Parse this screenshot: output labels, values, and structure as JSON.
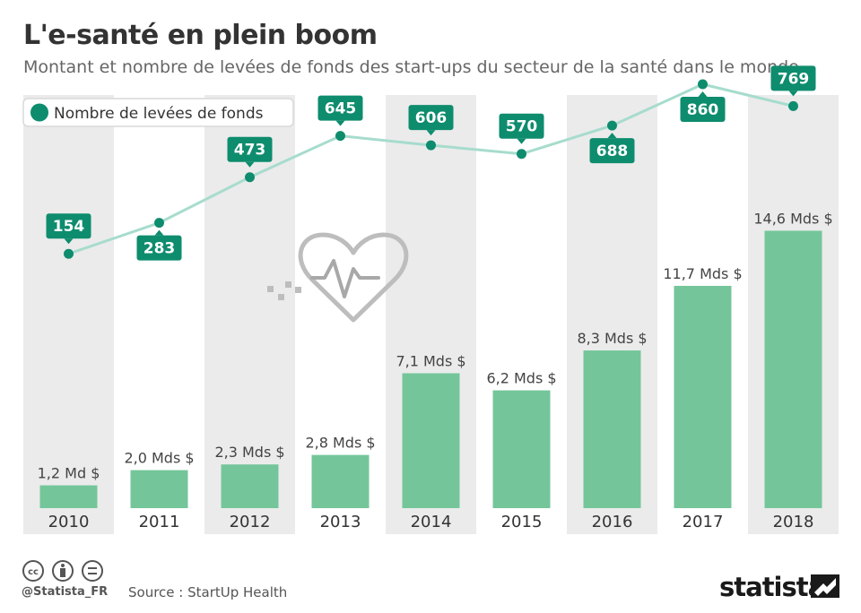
{
  "header": {
    "title": "L'e-santé en plein boom",
    "subtitle": "Montant et nombre de levées de fonds des start-ups du secteur de la santé dans le monde"
  },
  "legend": {
    "label": "Nombre de levées de fonds"
  },
  "footer": {
    "handle": "@Statista_FR",
    "source": "Source : StartUp Health",
    "brand": "statista"
  },
  "colors": {
    "bar": "#74c69a",
    "point": "#0e8c6e",
    "line": "#a7dccd",
    "shade": "#ebebeb"
  },
  "icons": [
    "creative-commons-icon",
    "attribution-icon",
    "no-derivatives-icon",
    "heartbeat-icon"
  ],
  "chart_data": {
    "type": "bar",
    "title": "L'e-santé en plein boom",
    "subtitle": "Montant et nombre de levées de fonds des start-ups du secteur de la santé dans le monde",
    "categories": [
      "2010",
      "2011",
      "2012",
      "2013",
      "2014",
      "2015",
      "2016",
      "2017",
      "2018"
    ],
    "series": [
      {
        "type": "bar",
        "values": [
          1.2,
          2.0,
          2.3,
          2.8,
          7.1,
          6.2,
          8.3,
          11.7,
          14.6
        ],
        "labels": [
          "1,2 Md $",
          "2,0 Mds $",
          "2,3 Mds $",
          "2,8 Mds $",
          "7,1 Mds $",
          "6,2 Mds $",
          "8,3 Mds $",
          "11,7 Mds $",
          "14,6 Mds $"
        ]
      },
      {
        "name": "Nombre de levées de fonds",
        "type": "line",
        "values": [
          154,
          283,
          473,
          645,
          606,
          570,
          688,
          860,
          769
        ],
        "labels": [
          "154",
          "283",
          "473",
          "645",
          "606",
          "570",
          "688",
          "860",
          "769"
        ]
      }
    ],
    "legend": "top-left",
    "shading": "alternate years",
    "grid": false
  }
}
